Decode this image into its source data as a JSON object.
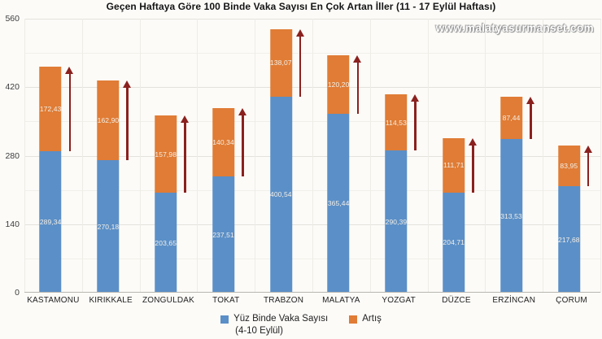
{
  "title": "Geçen Haftaya Göre 100 Binde Vaka Sayısı En Çok Artan İller (11 - 17 Eylül Haftası)",
  "watermark": "www.malatyasurmanset.com",
  "chart_data": {
    "type": "bar",
    "stacked": true,
    "title": "Geçen Haftaya Göre 100 Binde Vaka Sayısı En Çok Artan İller (11 - 17 Eylül Haftası)",
    "categories": [
      "KASTAMONU",
      "KIRIKKALE",
      "ZONGULDAK",
      "TOKAT",
      "TRABZON",
      "MALATYA",
      "YOZGAT",
      "DÜZCE",
      "ERZİNCAN",
      "ÇORUM"
    ],
    "series": [
      {
        "name": "Yüz Binde Vaka Sayısı (4-10 Eylül)",
        "color": "#5b8fc7",
        "values": [
          289.34,
          270.18,
          203.65,
          237.51,
          400.54,
          365.44,
          290.39,
          204.71,
          313.53,
          217.68
        ],
        "labels": [
          "289,34",
          "270,18",
          "203,65",
          "237,51",
          "400,54",
          "365,44",
          "290,39",
          "204,71",
          "313,53",
          "217,68"
        ]
      },
      {
        "name": "Artış",
        "color": "#e07c35",
        "values": [
          172.43,
          162.9,
          157.98,
          140.34,
          138.07,
          120.2,
          114.53,
          111.71,
          87.44,
          83.95
        ],
        "labels": [
          "172,43",
          "162,90",
          "157,98",
          "140,34",
          "138,07",
          "120,20",
          "114,53",
          "111,71",
          "87,44",
          "83,95"
        ]
      }
    ],
    "ylim": [
      0,
      560
    ],
    "yticks": [
      0,
      140,
      280,
      420,
      560
    ],
    "ytick_labels": [
      "0",
      "140",
      "280",
      "420",
      "560"
    ],
    "minor_yticks": [
      70,
      210,
      350,
      490
    ],
    "grid": true,
    "legend_position": "bottom",
    "legend": [
      {
        "label": "Yüz Binde Vaka Sayısı",
        "sublabel": "(4-10 Eylül)",
        "color": "#5b8fc7"
      },
      {
        "label": "Artış",
        "sublabel": "",
        "color": "#e07c35"
      }
    ],
    "annotations": "dark red upward arrow beside each bar spanning the increase segment",
    "arrow_color": "#8a211e"
  }
}
